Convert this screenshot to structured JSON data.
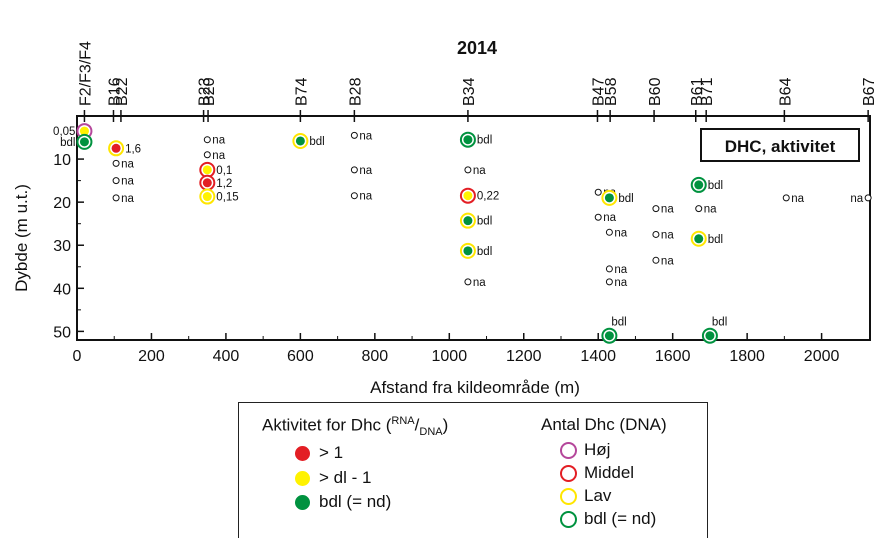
{
  "chart_data": {
    "type": "scatter",
    "title": "2014",
    "xlabel": "Afstand fra kildeområde (m)",
    "ylabel": "Dybde (m u.t.)",
    "xlim": [
      0,
      2130
    ],
    "ylim": [
      0,
      52
    ],
    "x_ticks": [
      0,
      200,
      400,
      600,
      800,
      1000,
      1200,
      1400,
      1600,
      1800,
      2000
    ],
    "y_ticks": [
      10,
      20,
      30,
      40,
      50
    ],
    "annotation_box": "DHC, aktivitet",
    "wells": [
      {
        "label": "F2/F3/F4",
        "x": 20
      },
      {
        "label": "B16",
        "x": 98
      },
      {
        "label": "B22",
        "x": 118
      },
      {
        "label": "B23",
        "x": 340
      },
      {
        "label": "B20",
        "x": 352
      },
      {
        "label": "B74",
        "x": 600
      },
      {
        "label": "B28",
        "x": 745
      },
      {
        "label": "B34",
        "x": 1050
      },
      {
        "label": "B47",
        "x": 1398
      },
      {
        "label": "B58",
        "x": 1432
      },
      {
        "label": "B60",
        "x": 1550
      },
      {
        "label": "B61",
        "x": 1662
      },
      {
        "label": "B71",
        "x": 1690
      },
      {
        "label": "B64",
        "x": 1900
      },
      {
        "label": "B67",
        "x": 2125
      }
    ],
    "points": [
      {
        "x": 20,
        "y": 3.5,
        "fill": "yellow",
        "ring": "magenta",
        "label": "0,05",
        "label_side": "left"
      },
      {
        "x": 20,
        "y": 6,
        "fill": "green",
        "ring": "green",
        "label": "bdl",
        "label_side": "left"
      },
      {
        "x": 105,
        "y": 7.5,
        "fill": "red",
        "ring": "yellow",
        "label": "1,6"
      },
      {
        "x": 105,
        "y": 11,
        "fill": "none",
        "ring": "small",
        "label": "na"
      },
      {
        "x": 105,
        "y": 15,
        "fill": "none",
        "ring": "small",
        "label": "na"
      },
      {
        "x": 105,
        "y": 19,
        "fill": "none",
        "ring": "small",
        "label": "na"
      },
      {
        "x": 350,
        "y": 5.5,
        "fill": "none",
        "ring": "small",
        "label": "na"
      },
      {
        "x": 350,
        "y": 9,
        "fill": "none",
        "ring": "small",
        "label": "na"
      },
      {
        "x": 350,
        "y": 12.5,
        "fill": "yellow",
        "ring": "red",
        "label": "0,1"
      },
      {
        "x": 350,
        "y": 15.5,
        "fill": "red",
        "ring": "red",
        "label": "1,2"
      },
      {
        "x": 350,
        "y": 18.7,
        "fill": "yellow",
        "ring": "yellow",
        "label": "0,15"
      },
      {
        "x": 600,
        "y": 5.8,
        "fill": "green",
        "ring": "yellow",
        "label": "bdl"
      },
      {
        "x": 745,
        "y": 4.5,
        "fill": "none",
        "ring": "small",
        "label": "na"
      },
      {
        "x": 745,
        "y": 12.5,
        "fill": "none",
        "ring": "small",
        "label": "na"
      },
      {
        "x": 745,
        "y": 18.5,
        "fill": "none",
        "ring": "small",
        "label": "na"
      },
      {
        "x": 1050,
        "y": 5.5,
        "fill": "green",
        "ring": "green",
        "label": "bdl"
      },
      {
        "x": 1050,
        "y": 12.5,
        "fill": "none",
        "ring": "small",
        "label": "na"
      },
      {
        "x": 1050,
        "y": 18.5,
        "fill": "yellow",
        "ring": "red",
        "label": "0,22"
      },
      {
        "x": 1050,
        "y": 24.3,
        "fill": "green",
        "ring": "yellow",
        "label": "bdl"
      },
      {
        "x": 1050,
        "y": 31.3,
        "fill": "green",
        "ring": "yellow",
        "label": "bdl"
      },
      {
        "x": 1050,
        "y": 38.5,
        "fill": "none",
        "ring": "small",
        "label": "na"
      },
      {
        "x": 1400,
        "y": 17.7,
        "fill": "none",
        "ring": "small",
        "label": "na"
      },
      {
        "x": 1430,
        "y": 19,
        "fill": "green",
        "ring": "yellow",
        "label": "bdl"
      },
      {
        "x": 1400,
        "y": 23.5,
        "fill": "none",
        "ring": "small",
        "label": "na"
      },
      {
        "x": 1430,
        "y": 27,
        "fill": "none",
        "ring": "small",
        "label": "na"
      },
      {
        "x": 1430,
        "y": 35.5,
        "fill": "none",
        "ring": "small",
        "label": "na"
      },
      {
        "x": 1430,
        "y": 38.5,
        "fill": "none",
        "ring": "small",
        "label": "na"
      },
      {
        "x": 1430,
        "y": 51,
        "fill": "green",
        "ring": "green",
        "label": "bdl",
        "label_side": "above"
      },
      {
        "x": 1555,
        "y": 21.5,
        "fill": "none",
        "ring": "small",
        "label": "na"
      },
      {
        "x": 1555,
        "y": 27.5,
        "fill": "none",
        "ring": "small",
        "label": "na"
      },
      {
        "x": 1555,
        "y": 33.5,
        "fill": "none",
        "ring": "small",
        "label": "na"
      },
      {
        "x": 1670,
        "y": 16,
        "fill": "green",
        "ring": "green",
        "label": "bdl"
      },
      {
        "x": 1670,
        "y": 21.5,
        "fill": "none",
        "ring": "small",
        "label": "na"
      },
      {
        "x": 1670,
        "y": 28.5,
        "fill": "green",
        "ring": "yellow",
        "label": "bdl"
      },
      {
        "x": 1700,
        "y": 51,
        "fill": "green",
        "ring": "green",
        "label": "bdl",
        "label_side": "above"
      },
      {
        "x": 1905,
        "y": 19,
        "fill": "none",
        "ring": "small",
        "label": "na"
      },
      {
        "x": 2125,
        "y": 19,
        "fill": "none",
        "ring": "small",
        "label": "na",
        "label_side": "left"
      }
    ],
    "colors": {
      "red": "#e31e24",
      "yellow": "#fff200",
      "green": "#00923f",
      "magenta": "#b5479b",
      "ring_red": "#e31e24",
      "ring_yellow": "#ffe600",
      "ring_green": "#00923f"
    }
  },
  "legend": {
    "activity_title_prefix": "Aktivitet  for Dhc (",
    "activity_title_sup": "RNA",
    "activity_title_sep": "/",
    "activity_title_sub": "DNA",
    "activity_title_suffix": ")",
    "activity_items": [
      {
        "label": "> 1",
        "color": "red"
      },
      {
        "label": "> dl - 1",
        "color": "yellow"
      },
      {
        "label": "bdl (= nd)",
        "color": "green"
      }
    ],
    "count_title": "Antal Dhc (DNA)",
    "count_items": [
      {
        "label": "Høj",
        "color": "magenta"
      },
      {
        "label": "Middel",
        "color": "red"
      },
      {
        "label": "Lav",
        "color": "yellow"
      },
      {
        "label": "bdl (= nd)",
        "color": "green"
      }
    ]
  }
}
